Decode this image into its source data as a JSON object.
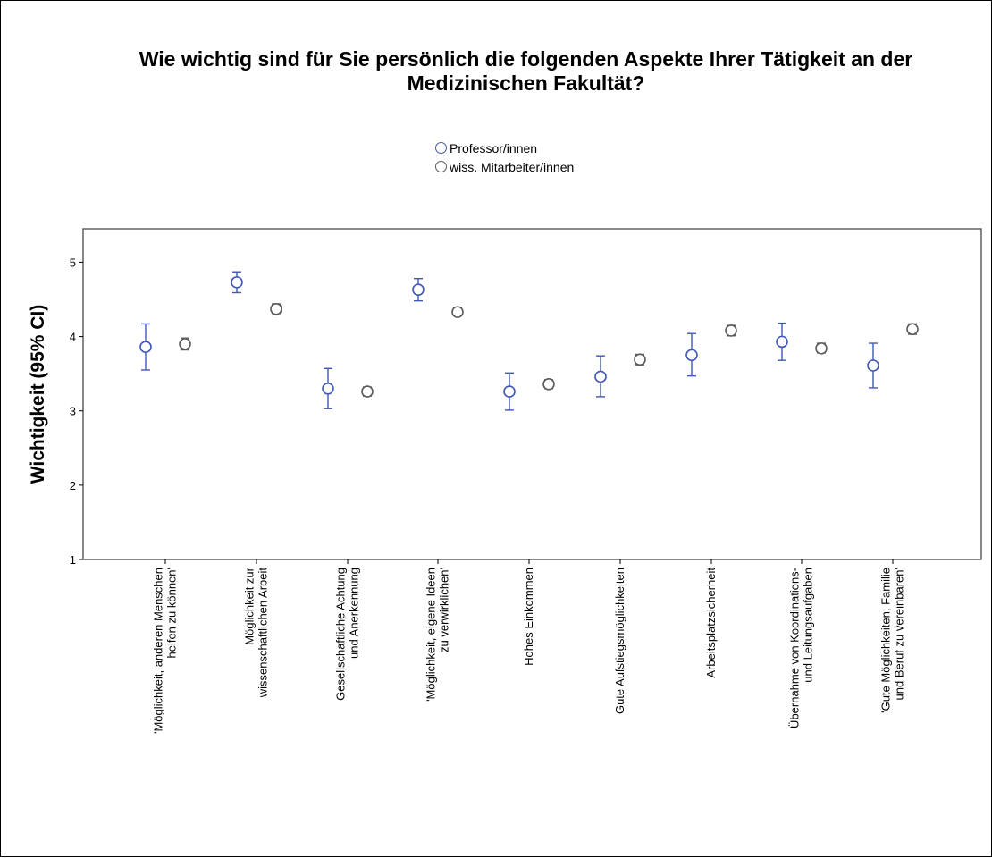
{
  "chart_data": {
    "type": "scatter",
    "subtype": "error-bar",
    "title": "Wie wichtig sind für Sie persönlich die folgenden Aspekte Ihrer Tätigkeit an der\nMedizinischen Fakultät?",
    "ylabel": "Wichtigkeit (95% CI)",
    "xlabel": "",
    "ylim": [
      1,
      5.45
    ],
    "yticks": [
      "1",
      "2",
      "3",
      "4",
      "5"
    ],
    "grid": false,
    "legend_position": "top-center",
    "categories": [
      [
        "'Möglichkeit, anderen Menschen",
        "helfen zu können'"
      ],
      [
        "Möglichkeit zur",
        "wissenschaftlichen Arbeit"
      ],
      [
        "Gesellschaftliche Achtung",
        "und Anerkennung"
      ],
      [
        "'Möglichkeit, eigene Ideen",
        "zu verwirklichen'"
      ],
      [
        "Hohes Einkommen"
      ],
      [
        "Gute Aufstiegsmöglichkeiten"
      ],
      [
        "Arbeitsplatzsicherheit"
      ],
      [
        "Übernahme von Koordinations-",
        "und Leitungsaufgaben"
      ],
      [
        "'Gute Möglichkeiten, Familie",
        "und Beruf zu vereinbaren'"
      ]
    ],
    "series": [
      {
        "name": "Professor/innen",
        "color": "#3f57b8",
        "mean": [
          3.86,
          4.73,
          3.3,
          4.63,
          3.26,
          3.46,
          3.75,
          3.93,
          3.61
        ],
        "ci_low": [
          3.55,
          4.59,
          3.03,
          4.48,
          3.01,
          3.19,
          3.47,
          3.68,
          3.31
        ],
        "ci_high": [
          4.17,
          4.87,
          3.57,
          4.78,
          3.51,
          3.74,
          4.04,
          4.18,
          3.91
        ]
      },
      {
        "name": "wiss. Mitarbeiter/innen",
        "color": "#5a5a5a",
        "mean": [
          3.9,
          4.37,
          3.26,
          4.33,
          3.36,
          3.69,
          4.08,
          3.84,
          4.1
        ],
        "ci_low": [
          3.82,
          4.31,
          3.2,
          4.28,
          3.3,
          3.62,
          4.01,
          3.78,
          4.03
        ],
        "ci_high": [
          3.98,
          4.44,
          3.32,
          4.39,
          3.42,
          3.76,
          4.15,
          3.91,
          4.17
        ]
      }
    ]
  }
}
